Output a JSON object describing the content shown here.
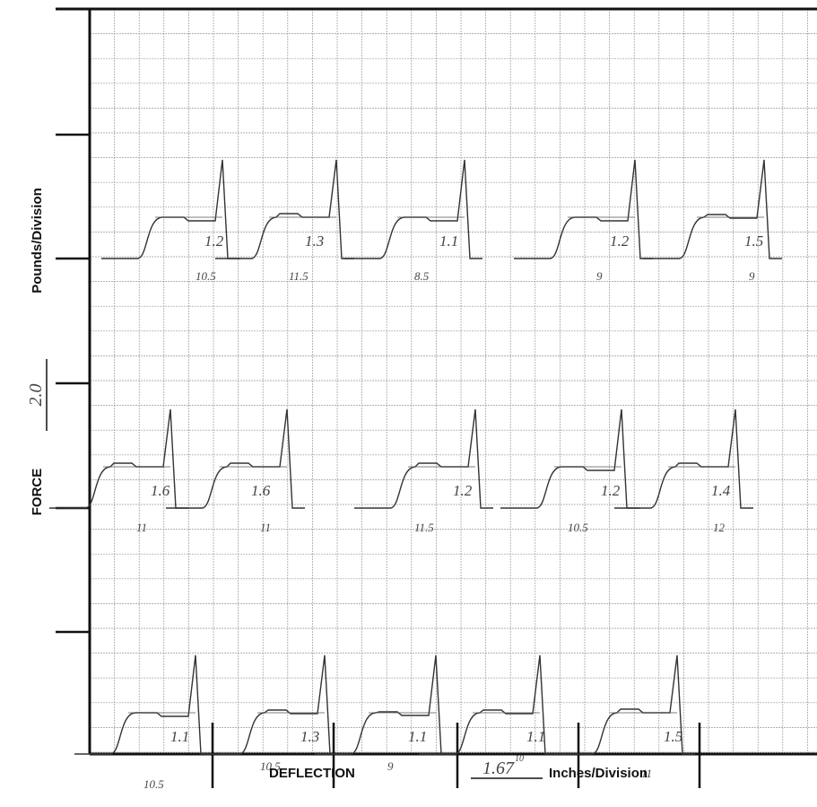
{
  "force_label": "FORCE",
  "force_value": "2.0",
  "force_unit": "Pounds/Division",
  "deflection_label": "DEFLECTION",
  "deflection_value": "1.67",
  "deflection_note": "10",
  "deflection_unit": "Inches/Division",
  "traces": [
    {
      "peak": "1.2",
      "note": "10.5"
    },
    {
      "peak": "1.3",
      "note": "11.5"
    },
    {
      "peak": "1.1",
      "note": "8.5"
    },
    {
      "peak": "1.2",
      "note": "9"
    },
    {
      "peak": "1.5",
      "note": "9"
    },
    {
      "peak": "1.6",
      "note": "11"
    },
    {
      "peak": "1.6",
      "note": "11"
    },
    {
      "peak": "1.2",
      "note": "11.5"
    },
    {
      "peak": "1.2",
      "note": "10.5"
    },
    {
      "peak": "1.4",
      "note": "12"
    },
    {
      "peak": "1.1",
      "note": "10.5"
    },
    {
      "peak": "1.3",
      "note": "10.5"
    },
    {
      "peak": "1.1",
      "note": "9"
    },
    {
      "peak": "1.1"
    },
    {
      "peak": "1.5",
      "note": "11"
    }
  ]
}
